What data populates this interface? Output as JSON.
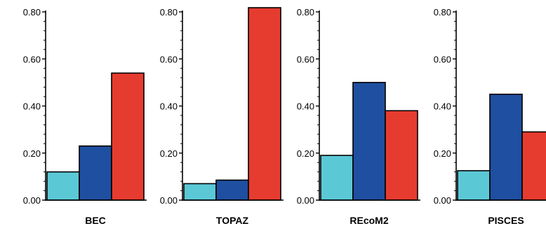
{
  "chart_data": {
    "type": "bar",
    "series_colors": [
      "#5bc8d6",
      "#1f4fa0",
      "#e63c2f"
    ],
    "ylim": [
      0,
      0.8
    ],
    "y_ticks": [
      "0.00",
      "0.20",
      "0.40",
      "0.60",
      "0.80"
    ],
    "panels": [
      {
        "category": "BEC",
        "values": [
          0.12,
          0.23,
          0.54
        ]
      },
      {
        "category": "TOPAZ",
        "values": [
          0.07,
          0.085,
          0.83
        ]
      },
      {
        "category": "REcoM2",
        "values": [
          0.19,
          0.5,
          0.38
        ]
      },
      {
        "category": "PISCES",
        "values": [
          0.125,
          0.45,
          0.29
        ]
      }
    ]
  }
}
